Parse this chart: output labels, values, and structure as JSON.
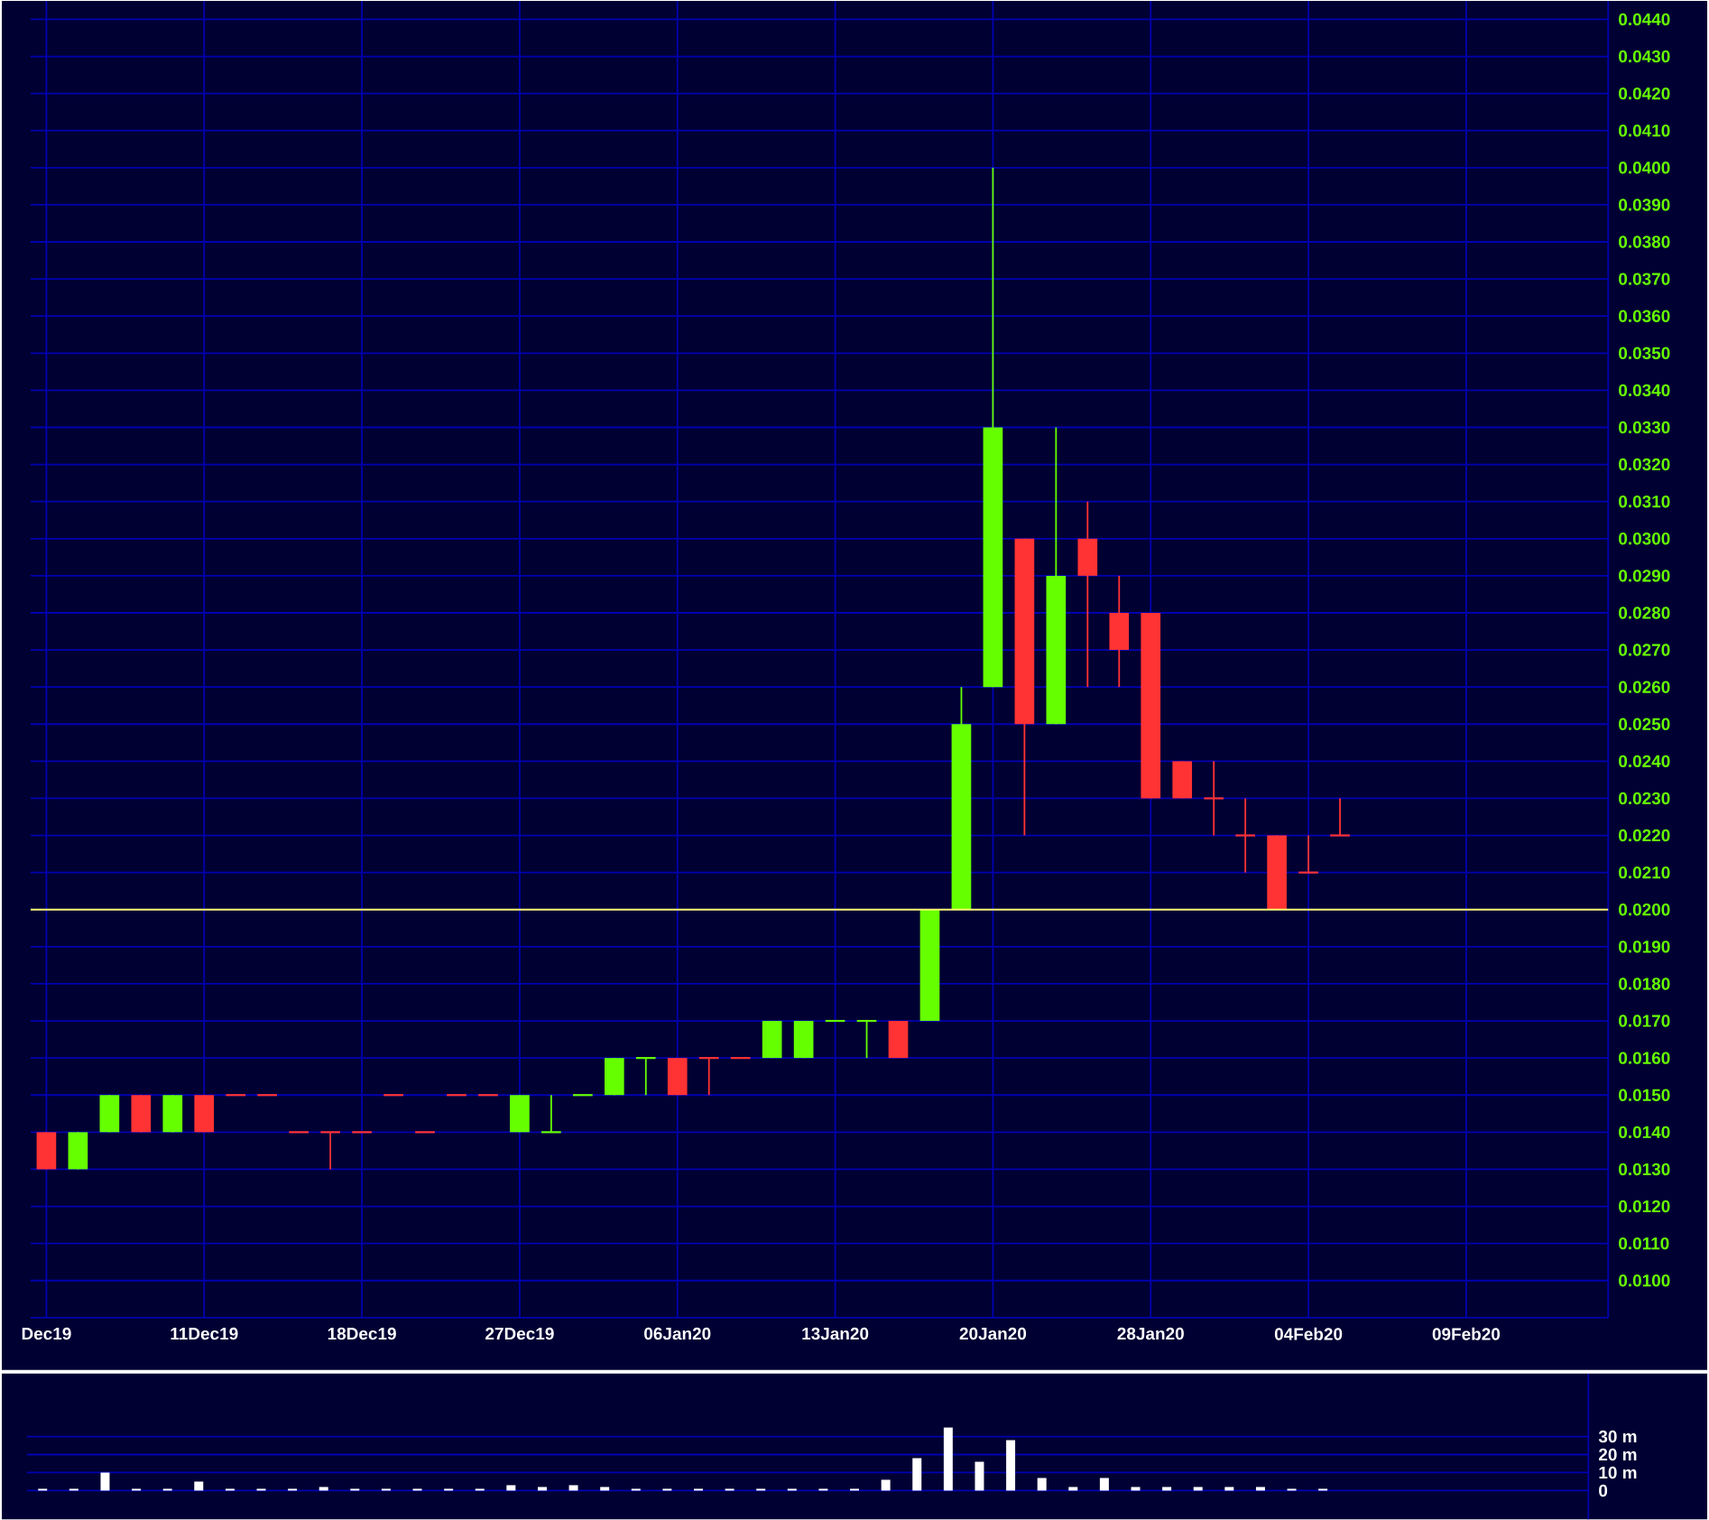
{
  "chart_data": [
    {
      "type": "candlestick",
      "categories": [
        "Dec19",
        null,
        null,
        null,
        null,
        "11Dec19",
        null,
        null,
        null,
        null,
        "18Dec19",
        null,
        null,
        null,
        null,
        "27Dec19",
        null,
        null,
        null,
        null,
        "06Jan20",
        null,
        null,
        null,
        null,
        "13Jan20",
        null,
        null,
        null,
        null,
        "20Jan20",
        null,
        null,
        null,
        null,
        "28Jan20",
        null,
        null,
        null,
        null,
        "04Feb20",
        null,
        null,
        null,
        null,
        "09Feb20",
        null,
        null,
        null,
        null
      ],
      "ohlc": [
        [
          0.014,
          0.014,
          0.013,
          0.013
        ],
        [
          0.013,
          0.014,
          0.013,
          0.014
        ],
        [
          0.014,
          0.015,
          0.014,
          0.015
        ],
        [
          0.015,
          0.015,
          0.014,
          0.014
        ],
        [
          0.014,
          0.015,
          0.014,
          0.015
        ],
        [
          0.015,
          0.015,
          0.014,
          0.014
        ],
        [
          0.015,
          0.015,
          0.015,
          0.015
        ],
        [
          0.015,
          0.015,
          0.015,
          0.015
        ],
        [
          0.014,
          0.014,
          0.014,
          0.014
        ],
        [
          0.014,
          0.014,
          0.013,
          0.014
        ],
        [
          0.014,
          0.014,
          0.014,
          0.014
        ],
        [
          0.015,
          0.015,
          0.015,
          0.015
        ],
        [
          0.014,
          0.014,
          0.014,
          0.014
        ],
        [
          0.015,
          0.015,
          0.015,
          0.015
        ],
        [
          0.015,
          0.015,
          0.015,
          0.015
        ],
        [
          0.014,
          0.015,
          0.014,
          0.015
        ],
        [
          0.014,
          0.015,
          0.014,
          0.014
        ],
        [
          0.015,
          0.015,
          0.015,
          0.015
        ],
        [
          0.015,
          0.016,
          0.015,
          0.016
        ],
        [
          0.016,
          0.016,
          0.015,
          0.016
        ],
        [
          0.016,
          0.016,
          0.015,
          0.015
        ],
        [
          0.016,
          0.016,
          0.015,
          0.016
        ],
        [
          0.016,
          0.016,
          0.016,
          0.016
        ],
        [
          0.016,
          0.017,
          0.016,
          0.017
        ],
        [
          0.016,
          0.017,
          0.016,
          0.017
        ],
        [
          0.017,
          0.017,
          0.017,
          0.017
        ],
        [
          0.017,
          0.017,
          0.016,
          0.017
        ],
        [
          0.017,
          0.017,
          0.016,
          0.016
        ],
        [
          0.017,
          0.02,
          0.017,
          0.02
        ],
        [
          0.02,
          0.026,
          0.02,
          0.025
        ],
        [
          0.026,
          0.04,
          0.026,
          0.033
        ],
        [
          0.03,
          0.03,
          0.022,
          0.025
        ],
        [
          0.025,
          0.033,
          0.025,
          0.029
        ],
        [
          0.03,
          0.031,
          0.026,
          0.029
        ],
        [
          0.028,
          0.029,
          0.026,
          0.027
        ],
        [
          0.028,
          0.028,
          0.023,
          0.023
        ],
        [
          0.024,
          0.024,
          0.023,
          0.023
        ],
        [
          0.023,
          0.024,
          0.022,
          0.023
        ],
        [
          0.022,
          0.023,
          0.021,
          0.022
        ],
        [
          0.022,
          0.022,
          0.02,
          0.02
        ],
        [
          0.021,
          0.022,
          0.021,
          0.021
        ],
        [
          0.022,
          0.023,
          0.022,
          0.022
        ],
        null,
        null,
        null,
        null,
        null,
        null,
        null,
        null
      ],
      "colors": [
        "#ff3333",
        "#66ff00",
        "#66ff00",
        "#ff3333",
        "#66ff00",
        "#ff3333",
        "#ff3333",
        "#ff3333",
        "#ff3333",
        "#ff3333",
        "#ff3333",
        "#ff3333",
        "#ff3333",
        "#ff3333",
        "#ff3333",
        "#66ff00",
        "#66ff00",
        "#66ff00",
        "#66ff00",
        "#66ff00",
        "#ff3333",
        "#ff3333",
        "#ff3333",
        "#66ff00",
        "#66ff00",
        "#66ff00",
        "#66ff00",
        "#ff3333",
        "#66ff00",
        "#66ff00",
        "#66ff00",
        "#ff3333",
        "#66ff00",
        "#ff3333",
        "#ff3333",
        "#ff3333",
        "#ff3333",
        "#ff3333",
        "#ff3333",
        "#ff3333",
        "#ff3333",
        "#ff3333",
        null,
        null,
        null,
        null,
        null,
        null,
        null,
        null
      ],
      "ylim": [
        0.009,
        0.0445
      ],
      "yticks": [
        {
          "value": 0.01,
          "label": "0.0100"
        },
        {
          "value": 0.011,
          "label": "0.0110"
        },
        {
          "value": 0.012,
          "label": "0.0120"
        },
        {
          "value": 0.013,
          "label": "0.0130"
        },
        {
          "value": 0.014,
          "label": "0.0140"
        },
        {
          "value": 0.015,
          "label": "0.0150"
        },
        {
          "value": 0.016,
          "label": "0.0160"
        },
        {
          "value": 0.017,
          "label": "0.0170"
        },
        {
          "value": 0.018,
          "label": "0.0180"
        },
        {
          "value": 0.019,
          "label": "0.0190"
        },
        {
          "value": 0.02,
          "label": "0.0200"
        },
        {
          "value": 0.021,
          "label": "0.0210"
        },
        {
          "value": 0.022,
          "label": "0.0220"
        },
        {
          "value": 0.023,
          "label": "0.0230"
        },
        {
          "value": 0.024,
          "label": "0.0240"
        },
        {
          "value": 0.025,
          "label": "0.0250"
        },
        {
          "value": 0.026,
          "label": "0.0260"
        },
        {
          "value": 0.027,
          "label": "0.0270"
        },
        {
          "value": 0.028,
          "label": "0.0280"
        },
        {
          "value": 0.029,
          "label": "0.0290"
        },
        {
          "value": 0.03,
          "label": "0.0300"
        },
        {
          "value": 0.031,
          "label": "0.0310"
        },
        {
          "value": 0.032,
          "label": "0.0320"
        },
        {
          "value": 0.033,
          "label": "0.0330"
        },
        {
          "value": 0.034,
          "label": "0.0340"
        },
        {
          "value": 0.035,
          "label": "0.0350"
        },
        {
          "value": 0.036,
          "label": "0.0360"
        },
        {
          "value": 0.037,
          "label": "0.0370"
        },
        {
          "value": 0.038,
          "label": "0.0380"
        },
        {
          "value": 0.039,
          "label": "0.0390"
        },
        {
          "value": 0.04,
          "label": "0.0400"
        },
        {
          "value": 0.041,
          "label": "0.0410"
        },
        {
          "value": 0.042,
          "label": "0.0420"
        },
        {
          "value": 0.043,
          "label": "0.0430"
        },
        {
          "value": 0.044,
          "label": "0.0440"
        }
      ],
      "grid": true,
      "ref_lines": [
        {
          "axis": "y",
          "value": 0.02,
          "color": "#ffff66"
        }
      ]
    },
    {
      "type": "bar",
      "categories": [
        null,
        null,
        null,
        null,
        null,
        null,
        null,
        null,
        null,
        null,
        null,
        null,
        null,
        null,
        null,
        null,
        null,
        null,
        null,
        null,
        null,
        null,
        null,
        null,
        null,
        null,
        null,
        null,
        null,
        null,
        null,
        null,
        null,
        null,
        null,
        null,
        null,
        null,
        null,
        null,
        null,
        null,
        null,
        null,
        null,
        null,
        null,
        null,
        null,
        null
      ],
      "values": [
        1,
        1,
        10,
        1,
        1,
        5,
        1,
        1,
        1,
        2,
        1,
        1,
        1,
        1,
        1,
        3,
        2,
        3,
        2,
        1,
        1,
        1,
        1,
        1,
        1,
        1,
        1,
        6,
        18,
        35,
        16,
        28,
        7,
        2,
        7,
        2,
        2,
        2,
        2,
        2,
        1,
        1,
        null,
        null,
        null,
        null,
        null,
        null,
        null,
        null
      ],
      "color": "#ffffff",
      "ylim": [
        -16,
        65
      ],
      "yticks": [
        0,
        {
          "value": 10,
          "label": "10 m"
        },
        {
          "value": 20,
          "label": "20 m"
        },
        {
          "value": 30,
          "label": "30 m"
        }
      ],
      "grid": true,
      "tick_labels": "y"
    }
  ]
}
